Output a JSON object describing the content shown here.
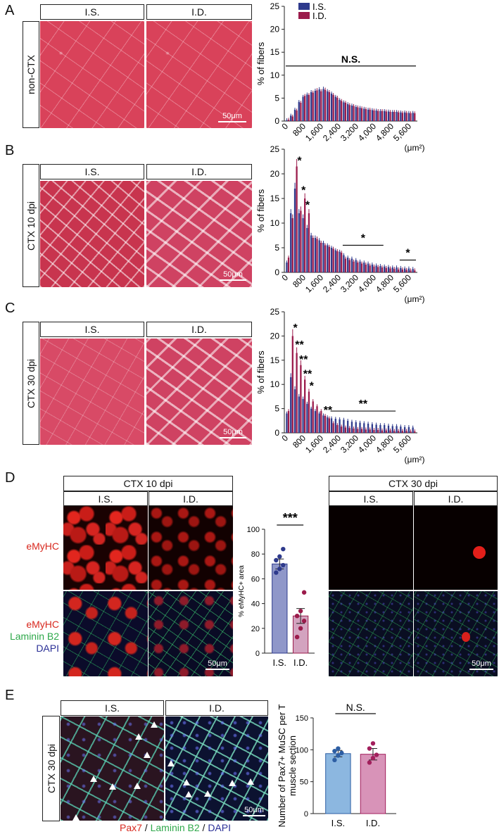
{
  "colors": {
    "is": "#2e3a8c",
    "id": "#9b1b4b",
    "is_light": "#8f97c9",
    "id_light": "#d49bb8",
    "is_e": "#8cb7e0",
    "id_e": "#d893b8",
    "red": "#d8281e",
    "green": "#2ea84a",
    "blue": "#2a2f96"
  },
  "panels": {
    "A": {
      "letter": "A",
      "row_label": "non-CTX",
      "col1": "I.S.",
      "col2": "I.D.",
      "scale": "50μm"
    },
    "B": {
      "letter": "B",
      "row_label": "CTX 10 dpi",
      "col1": "I.S.",
      "col2": "I.D.",
      "scale": "50μm"
    },
    "C": {
      "letter": "C",
      "row_label": "CTX 30 dpi",
      "col1": "I.S.",
      "col2": "I.D.",
      "scale": "50μm"
    },
    "D": {
      "letter": "D",
      "left_header": "CTX 10 dpi",
      "right_header": "CTX 30 dpi",
      "col1": "I.S.",
      "col2": "I.D.",
      "ch1": "eMyHC",
      "ch2a": "eMyHC",
      "ch2b": "Laminin B2",
      "ch2c": "DAPI",
      "scale": "50μm"
    },
    "E": {
      "letter": "E",
      "row_label": "CTX 30 dpi",
      "col1": "I.S.",
      "col2": "I.D.",
      "scale": "50μm",
      "cap1": "Pax7",
      "sep1": " / ",
      "cap2": "Laminin B2",
      "sep2": " / ",
      "cap3": "DAPI"
    }
  },
  "chart_data": [
    {
      "id": "A",
      "type": "bar",
      "ylabel": "% of fibers",
      "ylim": [
        0,
        25
      ],
      "yticks": [
        "0",
        "5",
        "10",
        "15",
        "20",
        "25"
      ],
      "xticks": [
        "0",
        "800",
        "1,600",
        "2,400",
        "3,200",
        "4,000",
        "4,800",
        "5,600"
      ],
      "xunit": "(μm²)",
      "legend": [
        "I.S.",
        "I.D."
      ],
      "legend_position": "top-left",
      "series": [
        {
          "name": "I.S.",
          "values": [
            0.2,
            1.2,
            2.5,
            4.2,
            5.3,
            5.8,
            6.3,
            6.6,
            6.9,
            7.0,
            6.5,
            6.0,
            5.3,
            4.6,
            4.1,
            3.7,
            3.4,
            3.1,
            2.9,
            2.7,
            2.5,
            2.4,
            2.3,
            2.2,
            2.2,
            2.1,
            2.0,
            2.0,
            1.9,
            1.9,
            1.8,
            1.8
          ]
        },
        {
          "name": "I.D.",
          "values": [
            0.3,
            1.0,
            2.3,
            4.0,
            5.5,
            5.7,
            6.2,
            6.7,
            6.5,
            6.8,
            6.3,
            5.7,
            5.1,
            4.4,
            4.0,
            3.5,
            3.3,
            3.0,
            2.8,
            2.6,
            2.5,
            2.3,
            2.2,
            2.2,
            2.1,
            2.0,
            2.0,
            1.9,
            1.8,
            1.8,
            1.7,
            1.7
          ]
        }
      ],
      "annotations": [
        {
          "text": "N.S.",
          "from": 0,
          "to": 31,
          "y": 12
        }
      ]
    },
    {
      "id": "B",
      "type": "bar",
      "ylabel": "% of fibers",
      "ylim": [
        0,
        25
      ],
      "yticks": [
        "0",
        "5",
        "10",
        "15",
        "20",
        "25"
      ],
      "xticks": [
        "0",
        "800",
        "1,600",
        "2,400",
        "3,200",
        "4,000",
        "4,800",
        "5,600"
      ],
      "xunit": "(μm²)",
      "series": [
        {
          "name": "I.S.",
          "values": [
            2.0,
            12.0,
            17.0,
            12.0,
            11.0,
            9.0,
            7.5,
            7.0,
            6.5,
            6.0,
            5.5,
            5.0,
            4.5,
            4.2,
            3.5,
            3.0,
            2.8,
            2.5,
            2.2,
            2.0,
            1.8,
            1.6,
            1.4,
            1.3,
            1.2,
            1.1,
            1.0,
            1.0,
            0.9,
            0.8,
            0.8,
            0.7
          ]
        },
        {
          "name": "I.D.",
          "values": [
            3.0,
            11.0,
            21.5,
            12.5,
            15.0,
            12.0,
            7.0,
            6.8,
            6.0,
            5.5,
            5.2,
            4.8,
            4.3,
            4.0,
            2.8,
            2.5,
            2.2,
            2.0,
            1.8,
            1.6,
            1.4,
            1.2,
            1.1,
            1.0,
            0.9,
            0.8,
            0.7,
            0.6,
            0.6,
            0.5,
            0.4,
            0.4
          ]
        }
      ],
      "annotations": [
        {
          "text": "*",
          "at": 2,
          "y": 22.5
        },
        {
          "text": "*",
          "at": 3,
          "y": 16.5
        },
        {
          "text": "*",
          "at": 4,
          "y": 13.5
        },
        {
          "text": "*",
          "from": 14,
          "to": 23,
          "y": 5.5
        },
        {
          "text": "*",
          "from": 28,
          "to": 31,
          "y": 2.5
        }
      ]
    },
    {
      "id": "C",
      "type": "bar",
      "ylabel": "% of fibers",
      "ylim": [
        0,
        25
      ],
      "yticks": [
        "0",
        "5",
        "10",
        "15",
        "20",
        "25"
      ],
      "xticks": [
        "0",
        "800",
        "1,600",
        "2,400",
        "3,200",
        "4,000",
        "4,800",
        "5,600"
      ],
      "xunit": "(μm²)",
      "series": [
        {
          "name": "I.S.",
          "values": [
            4.0,
            11.5,
            9.0,
            7.5,
            7.0,
            6.0,
            5.0,
            4.5,
            4.0,
            3.6,
            3.2,
            3.0,
            2.9,
            2.8,
            2.7,
            2.5,
            2.3,
            2.2,
            2.1,
            2.0,
            1.9,
            1.8,
            1.7,
            1.6,
            1.6,
            1.5,
            1.4,
            1.4,
            1.3,
            1.2,
            1.2,
            1.1
          ]
        },
        {
          "name": "I.D.",
          "values": [
            4.5,
            20.0,
            16.5,
            14.0,
            11.0,
            8.5,
            6.5,
            5.5,
            4.5,
            3.5,
            3.0,
            2.0,
            1.6,
            1.3,
            1.1,
            1.0,
            0.9,
            0.8,
            0.8,
            0.7,
            0.7,
            0.6,
            0.6,
            0.5,
            0.5,
            0.5,
            0.4,
            0.4,
            0.4,
            0.4,
            0.3,
            0.3
          ]
        }
      ],
      "annotations": [
        {
          "text": "*",
          "at": 1,
          "y": 21.5
        },
        {
          "text": "**",
          "at": 2,
          "y": 18
        },
        {
          "text": "**",
          "at": 3,
          "y": 15
        },
        {
          "text": "**",
          "at": 4,
          "y": 12
        },
        {
          "text": "*",
          "at": 5,
          "y": 9.5
        },
        {
          "text": "**",
          "at": 9,
          "y": 4.5
        },
        {
          "text": "**",
          "from": 11,
          "to": 26,
          "y": 4.5
        }
      ]
    },
    {
      "id": "D",
      "type": "bar",
      "ylabel": "% eMyHC+ area",
      "ylim": [
        0,
        100
      ],
      "yticks": [
        "0",
        "20",
        "40",
        "60",
        "80",
        "100"
      ],
      "categories": [
        "I.S.",
        "I.D."
      ],
      "values": [
        72,
        30
      ],
      "errors": [
        4,
        6
      ],
      "points": [
        [
          65,
          68,
          71,
          75,
          78,
          84
        ],
        [
          13,
          20,
          26,
          30,
          34,
          49
        ]
      ],
      "annotation": "***"
    },
    {
      "id": "E",
      "type": "bar",
      "ylabel": "Number of Pax7+ MuSC per TA muscle section",
      "ylim": [
        0,
        150
      ],
      "yticks": [
        "0",
        "50",
        "100",
        "150"
      ],
      "categories": [
        "I.S.",
        "I.D."
      ],
      "values": [
        94,
        93
      ],
      "errors": [
        5,
        9
      ],
      "points": [
        [
          84,
          91,
          95,
          98,
          102
        ],
        [
          80,
          87,
          92,
          102,
          110
        ]
      ],
      "annotation": "N.S."
    }
  ]
}
